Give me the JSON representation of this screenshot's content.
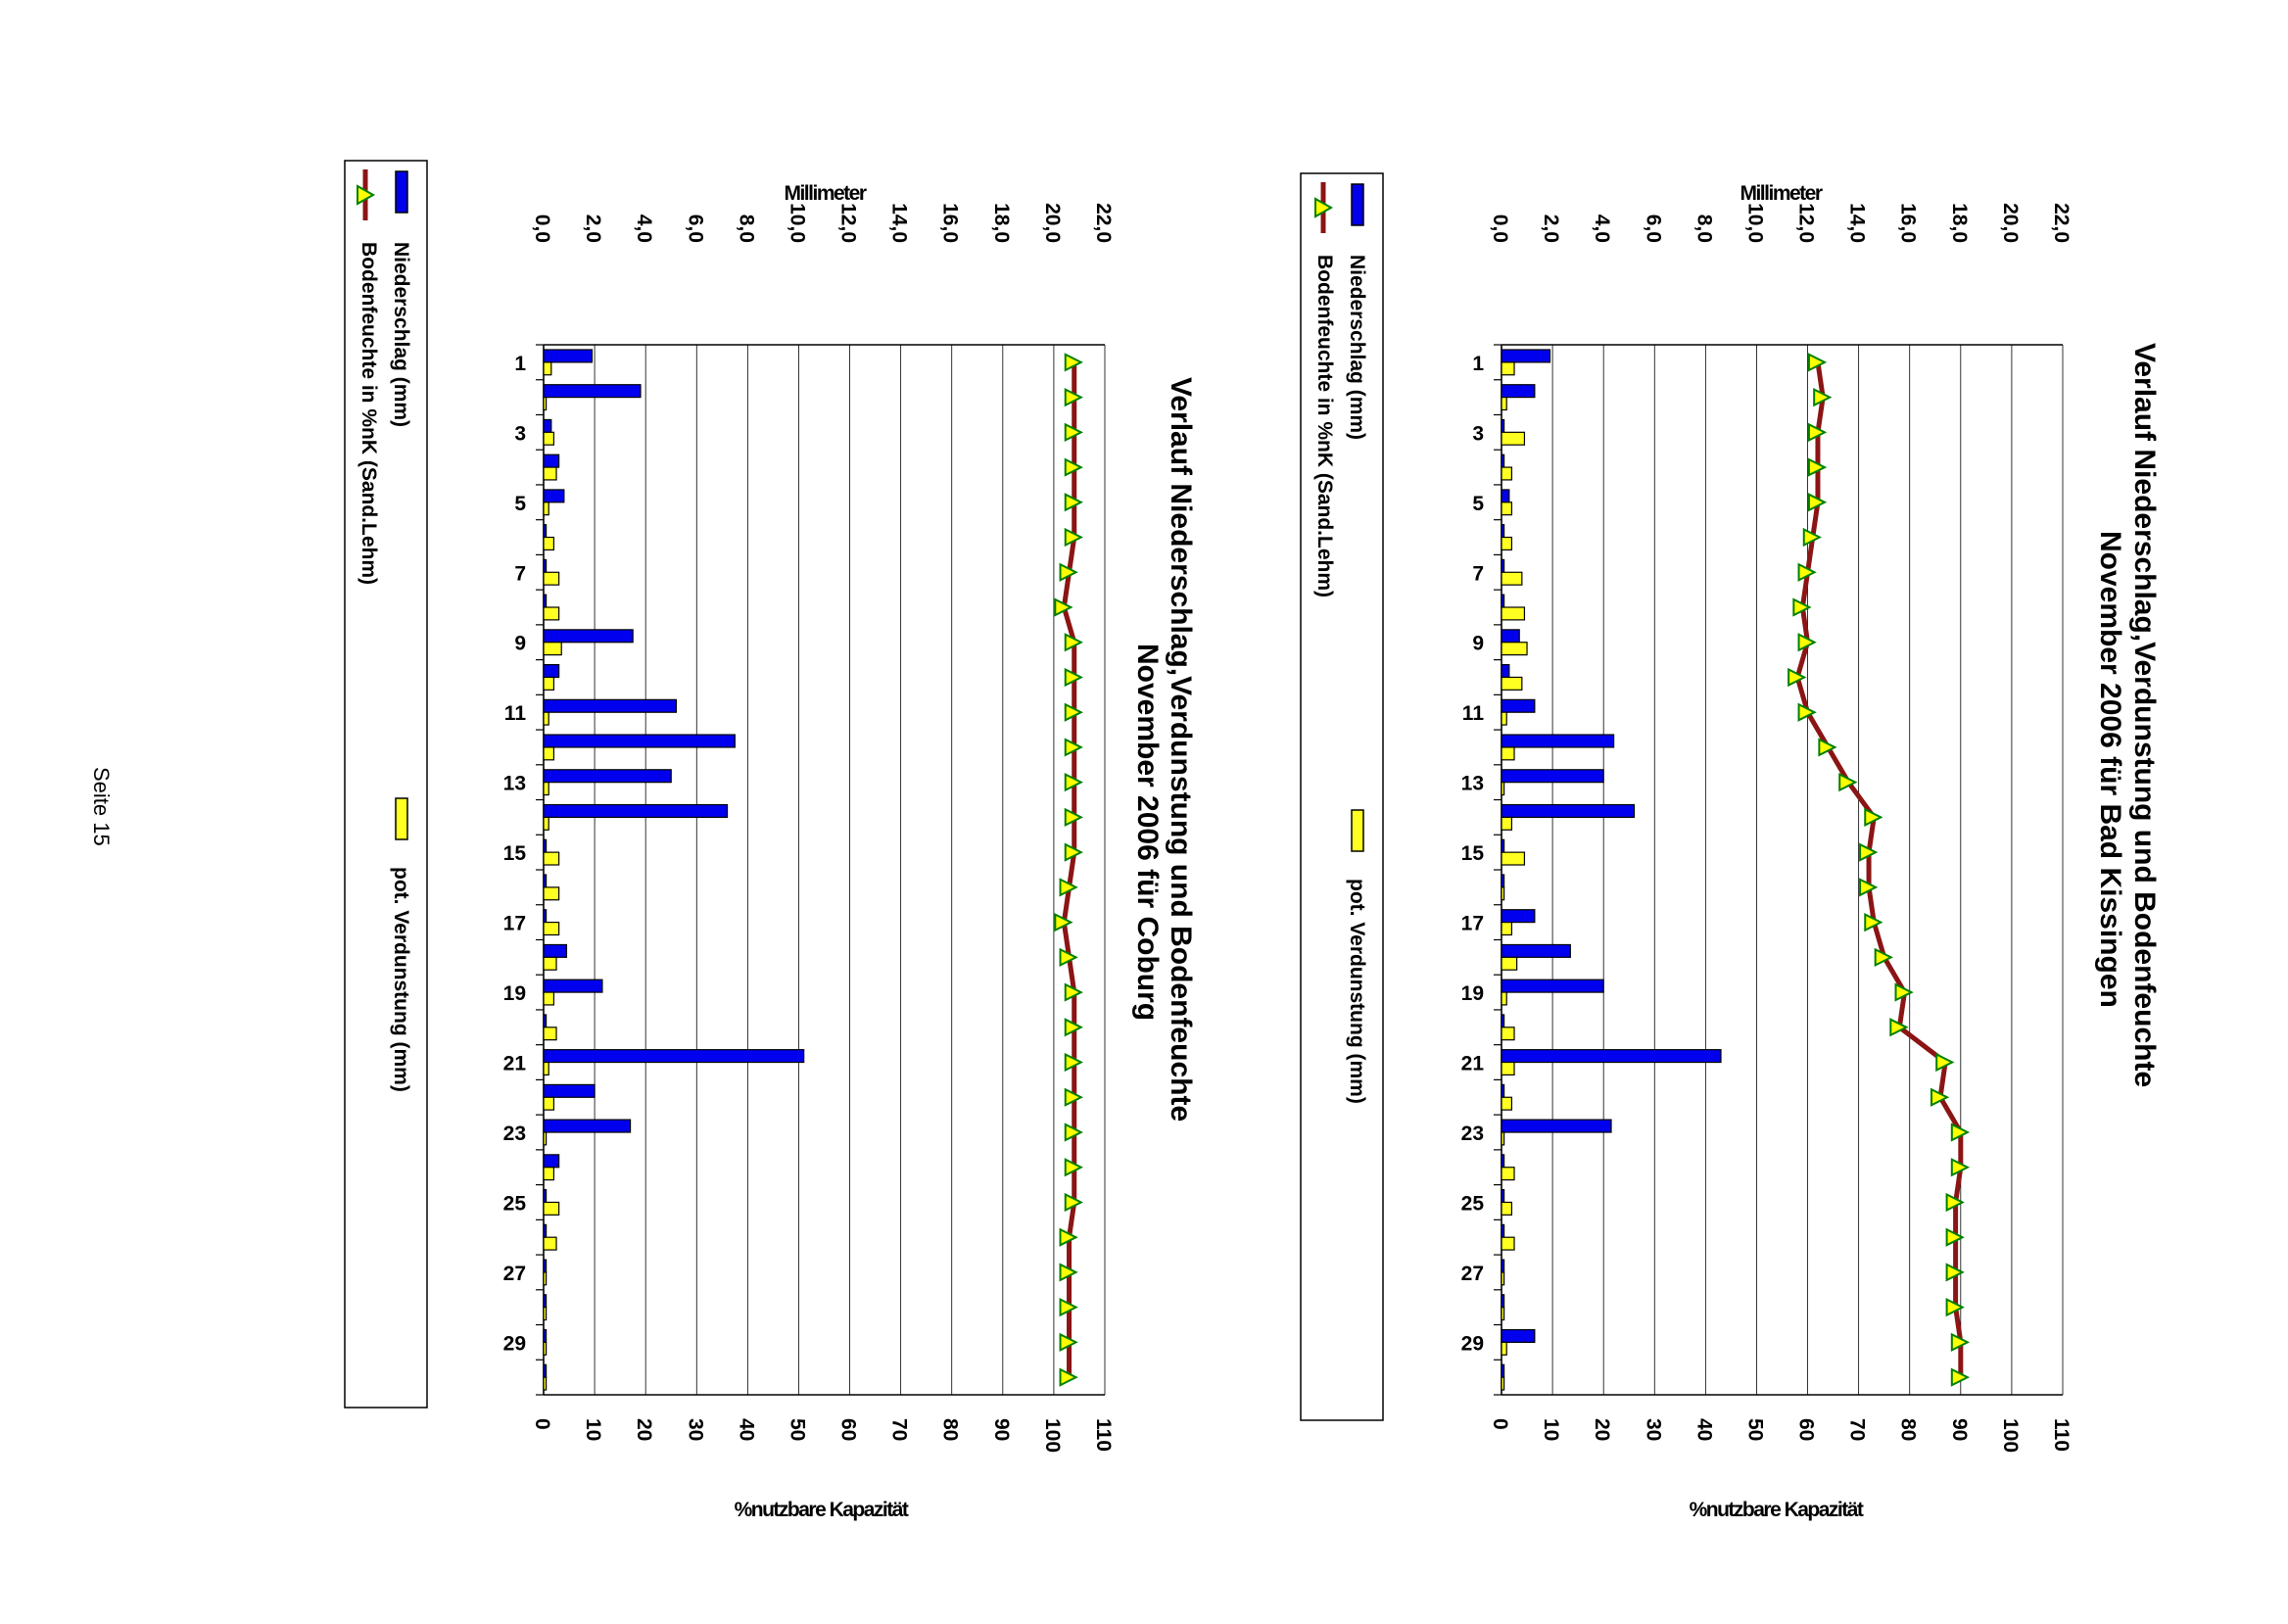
{
  "page": {
    "page_number_label": "Seite 15"
  },
  "colors": {
    "niederschlag": "#0000ee",
    "verdunstung": "#ffff22",
    "bodenfeuchte_line": "#8b1414",
    "bodenfeuchte_marker": "#ffff00",
    "bodenfeuchte_marker_edge": "#008000",
    "grid": "#000000"
  },
  "chart_data": [
    {
      "type": "bar",
      "title_line1": "Verlauf Niederschlag,Verdunstung und Bodenfeuchte",
      "title_line2": "November  2006 für Bad Kissingen",
      "left_axis_label": "Millimeter",
      "right_axis_label": "%nutzbare Kapazität",
      "mm_ticks": [
        "0,0",
        "2,0",
        "4,0",
        "6,0",
        "8,0",
        "10,0",
        "12,0",
        "14,0",
        "16,0",
        "18,0",
        "20,0",
        "22,0"
      ],
      "pct_ticks": [
        "0",
        "10",
        "20",
        "30",
        "40",
        "50",
        "60",
        "70",
        "80",
        "90",
        "100",
        "110"
      ],
      "ylim_mm": [
        0,
        22
      ],
      "ylim_pct": [
        0,
        110
      ],
      "day_labels": [
        "1",
        "3",
        "5",
        "7",
        "9",
        "11",
        "13",
        "15",
        "17",
        "19",
        "21",
        "23",
        "25",
        "27",
        "29"
      ],
      "days": [
        1,
        2,
        3,
        4,
        5,
        6,
        7,
        8,
        9,
        10,
        11,
        12,
        13,
        14,
        15,
        16,
        17,
        18,
        19,
        20,
        21,
        22,
        23,
        24,
        25,
        26,
        27,
        28,
        29,
        30
      ],
      "series": [
        {
          "name": "Niederschlag (mm)",
          "axis": "mm",
          "values": [
            1.9,
            1.3,
            0.1,
            0.1,
            0.3,
            0.1,
            0.1,
            0.1,
            0.7,
            0.3,
            1.3,
            4.4,
            4.0,
            5.2,
            0.1,
            0.1,
            1.3,
            2.7,
            4.0,
            0.1,
            8.6,
            0.1,
            4.3,
            0.1,
            0.1,
            0.1,
            0.1,
            0.1,
            1.3,
            0.1
          ]
        },
        {
          "name": "pot. Verdunstung (mm)",
          "axis": "mm",
          "values": [
            0.5,
            0.2,
            0.9,
            0.4,
            0.4,
            0.4,
            0.8,
            0.9,
            1.0,
            0.8,
            0.2,
            0.5,
            0.1,
            0.4,
            0.9,
            0.1,
            0.4,
            0.6,
            0.2,
            0.5,
            0.5,
            0.4,
            0.1,
            0.5,
            0.4,
            0.5,
            0.1,
            0.1,
            0.2,
            0.1
          ]
        },
        {
          "name": "Bodenfeuchte in %nK (Sand.Lehm)",
          "axis": "pct",
          "values": [
            62,
            63,
            62,
            62,
            62,
            61,
            60,
            59,
            60,
            58,
            60,
            64,
            68,
            73,
            72,
            72,
            73,
            75,
            79,
            78,
            87,
            86,
            90,
            90,
            89,
            89,
            89,
            89,
            90,
            90
          ]
        }
      ],
      "legend": {
        "niederschlag": "Niederschlag (mm)",
        "bodenfeuchte": "Bodenfeuchte in %nK (Sand.Lehm)",
        "verdunstung": "pot. Verdunstung (mm)"
      }
    },
    {
      "type": "bar",
      "title_line1": "Verlauf Niederschlag,Verdunstung und Bodenfeuchte",
      "title_line2": "November 2006 für Coburg",
      "left_axis_label": "Millimeter",
      "right_axis_label": "%nutzbare Kapazität",
      "mm_ticks": [
        "0,0",
        "2,0",
        "4,0",
        "6,0",
        "8,0",
        "10,0",
        "12,0",
        "14,0",
        "16,0",
        "18,0",
        "20,0",
        "22,0"
      ],
      "pct_ticks": [
        "0",
        "10",
        "20",
        "30",
        "40",
        "50",
        "60",
        "70",
        "80",
        "90",
        "100",
        "110"
      ],
      "ylim_mm": [
        0,
        22
      ],
      "ylim_pct": [
        0,
        110
      ],
      "day_labels": [
        "1",
        "3",
        "5",
        "7",
        "9",
        "11",
        "13",
        "15",
        "17",
        "19",
        "21",
        "23",
        "25",
        "27",
        "29"
      ],
      "days": [
        1,
        2,
        3,
        4,
        5,
        6,
        7,
        8,
        9,
        10,
        11,
        12,
        13,
        14,
        15,
        16,
        17,
        18,
        19,
        20,
        21,
        22,
        23,
        24,
        25,
        26,
        27,
        28,
        29,
        30
      ],
      "series": [
        {
          "name": "Niederschlag (mm)",
          "axis": "mm",
          "values": [
            1.9,
            3.8,
            0.3,
            0.6,
            0.8,
            0.1,
            0.1,
            0.1,
            3.5,
            0.6,
            5.2,
            7.5,
            5.0,
            7.2,
            0.1,
            0.1,
            0.1,
            0.9,
            2.3,
            0.1,
            10.2,
            2.0,
            3.4,
            0.6,
            0.1,
            0.1,
            0.1,
            0.1,
            0.1,
            0.1
          ]
        },
        {
          "name": "pot. Verdunstung (mm)",
          "axis": "mm",
          "values": [
            0.3,
            0.1,
            0.4,
            0.5,
            0.2,
            0.4,
            0.6,
            0.6,
            0.7,
            0.4,
            0.2,
            0.4,
            0.2,
            0.2,
            0.6,
            0.6,
            0.6,
            0.5,
            0.4,
            0.5,
            0.2,
            0.4,
            0.1,
            0.4,
            0.6,
            0.5,
            0.1,
            0.1,
            0.1,
            0.1
          ]
        },
        {
          "name": "Bodenfeuchte in %nK (Sand.Lehm)",
          "axis": "pct",
          "values": [
            104,
            104,
            104,
            104,
            104,
            104,
            103,
            102,
            104,
            104,
            104,
            104,
            104,
            104,
            104,
            103,
            102,
            103,
            104,
            104,
            104,
            104,
            104,
            104,
            104,
            103,
            103,
            103,
            103,
            103
          ]
        }
      ],
      "legend": {
        "niederschlag": "Niederschlag (mm)",
        "bodenfeuchte": "Bodenfeuchte in %nK (Sand.Lehm)",
        "verdunstung": "pot. Verdunstung (mm)"
      }
    }
  ]
}
